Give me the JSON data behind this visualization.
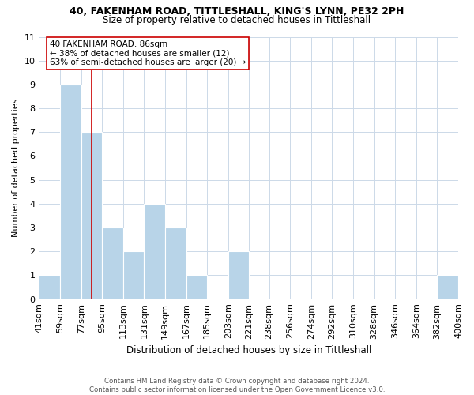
{
  "title": "40, FAKENHAM ROAD, TITTLESHALL, KING'S LYNN, PE32 2PH",
  "subtitle": "Size of property relative to detached houses in Tittleshall",
  "xlabel": "Distribution of detached houses by size in Tittleshall",
  "ylabel": "Number of detached properties",
  "bin_edges": [
    41,
    59,
    77,
    95,
    113,
    131,
    149,
    167,
    185,
    203,
    221,
    238,
    256,
    274,
    292,
    310,
    328,
    346,
    364,
    382,
    400
  ],
  "bin_counts": [
    1,
    9,
    7,
    3,
    2,
    4,
    3,
    1,
    0,
    2,
    0,
    0,
    0,
    0,
    0,
    0,
    0,
    0,
    0,
    1
  ],
  "bar_color": "#b8d4e8",
  "bar_edge_color": "#ffffff",
  "property_size": 86,
  "red_line_color": "#cc0000",
  "annotation_line1": "40 FAKENHAM ROAD: 86sqm",
  "annotation_line2": "← 38% of detached houses are smaller (12)",
  "annotation_line3": "63% of semi-detached houses are larger (20) →",
  "annotation_box_color": "#ffffff",
  "annotation_box_edge_color": "#cc0000",
  "ylim": [
    0,
    11
  ],
  "yticks": [
    0,
    1,
    2,
    3,
    4,
    5,
    6,
    7,
    8,
    9,
    10,
    11
  ],
  "tick_labels": [
    "41sqm",
    "59sqm",
    "77sqm",
    "95sqm",
    "113sqm",
    "131sqm",
    "149sqm",
    "167sqm",
    "185sqm",
    "203sqm",
    "221sqm",
    "238sqm",
    "256sqm",
    "274sqm",
    "292sqm",
    "310sqm",
    "328sqm",
    "346sqm",
    "364sqm",
    "382sqm",
    "400sqm"
  ],
  "footer_text": "Contains HM Land Registry data © Crown copyright and database right 2024.\nContains public sector information licensed under the Open Government Licence v3.0.",
  "bg_color": "#ffffff",
  "grid_color": "#ccd9e8"
}
